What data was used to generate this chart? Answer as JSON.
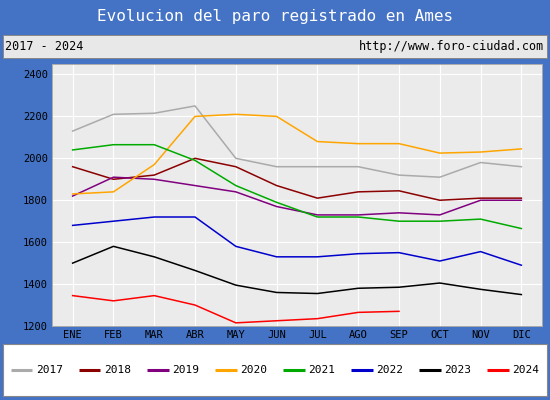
{
  "title": "Evolucion del paro registrado en Ames",
  "subtitle_left": "2017 - 2024",
  "subtitle_right": "http://www.foro-ciudad.com",
  "months": [
    "ENE",
    "FEB",
    "MAR",
    "ABR",
    "MAY",
    "JUN",
    "JUL",
    "AGO",
    "SEP",
    "OCT",
    "NOV",
    "DIC"
  ],
  "ylim": [
    1200,
    2450
  ],
  "yticks": [
    1200,
    1400,
    1600,
    1800,
    2000,
    2200,
    2400
  ],
  "series": {
    "2017": {
      "color": "#aaaaaa",
      "data": [
        2130,
        2210,
        2215,
        2250,
        2000,
        1960,
        1960,
        1960,
        1920,
        1910,
        1980,
        1960
      ]
    },
    "2018": {
      "color": "#8B0000",
      "data": [
        1960,
        1900,
        1920,
        2000,
        1960,
        1870,
        1810,
        1840,
        1845,
        1800,
        1810,
        1810
      ]
    },
    "2019": {
      "color": "#800080",
      "data": [
        1820,
        1910,
        1900,
        1870,
        1840,
        1770,
        1730,
        1730,
        1740,
        1730,
        1800,
        1800
      ]
    },
    "2020": {
      "color": "#FFA500",
      "data": [
        1830,
        1840,
        1970,
        2200,
        2210,
        2200,
        2080,
        2070,
        2070,
        2025,
        2030,
        2045
      ]
    },
    "2021": {
      "color": "#00AA00",
      "data": [
        2040,
        2065,
        2065,
        1990,
        1870,
        1790,
        1720,
        1720,
        1700,
        1700,
        1710,
        1665
      ]
    },
    "2022": {
      "color": "#0000CC",
      "data": [
        1680,
        1700,
        1720,
        1720,
        1580,
        1530,
        1530,
        1545,
        1550,
        1510,
        1555,
        1490
      ]
    },
    "2023": {
      "color": "#000000",
      "data": [
        1500,
        1580,
        1530,
        1465,
        1395,
        1360,
        1355,
        1380,
        1385,
        1405,
        1375,
        1350
      ]
    },
    "2024": {
      "color": "#FF0000",
      "data": [
        1345,
        1320,
        1345,
        1300,
        1215,
        1225,
        1235,
        1265,
        1270,
        null,
        null,
        null
      ]
    }
  },
  "title_bg": "#5b8dd9",
  "title_color": "#ffffff",
  "subtitle_bg": "#e8e8e8",
  "plot_bg": "#ebebeb",
  "outer_bg": "#4472c4",
  "legend_bg": "#ffffff"
}
